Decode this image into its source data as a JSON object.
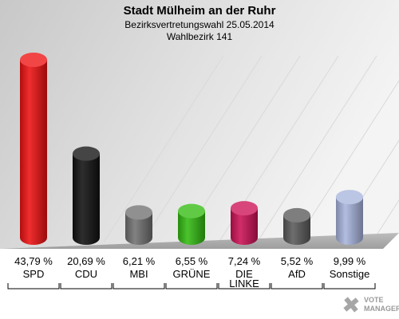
{
  "chart_data": {
    "type": "bar",
    "title": "Stadt Mülheim an der Ruhr",
    "subtitle_lines": [
      "Bezirksvertretungswahl 25.05.2014",
      "Wahlbezirk 141"
    ],
    "categories": [
      {
        "name": "SPD",
        "label_lines": [
          "SPD"
        ],
        "value": 43.79,
        "value_label": "43,79 %",
        "color": "#ee1111"
      },
      {
        "name": "CDU",
        "label_lines": [
          "CDU"
        ],
        "value": 20.69,
        "value_label": "20,69 %",
        "color": "#111111"
      },
      {
        "name": "MBI",
        "label_lines": [
          "MBI"
        ],
        "value": 6.21,
        "value_label": "6,21 %",
        "color": "#717171"
      },
      {
        "name": "GRÜNE",
        "label_lines": [
          "GRÜNE"
        ],
        "value": 6.55,
        "value_label": "6,55 %",
        "color": "#33bb11"
      },
      {
        "name": "DIE LINKE",
        "label_lines": [
          "DIE",
          "LINKE"
        ],
        "value": 7.24,
        "value_label": "7,24 %",
        "color": "#cc1155"
      },
      {
        "name": "AfD",
        "label_lines": [
          "AfD"
        ],
        "value": 5.52,
        "value_label": "5,52 %",
        "color": "#5a5a5a"
      },
      {
        "name": "Sonstige",
        "label_lines": [
          "Sonstige"
        ],
        "value": 9.99,
        "value_label": "9,99 %",
        "color": "#a8b4dd"
      }
    ],
    "ylim": [
      0,
      43.79
    ],
    "grid": true,
    "logo_lines": [
      "VOTE",
      "MANAGER"
    ]
  }
}
